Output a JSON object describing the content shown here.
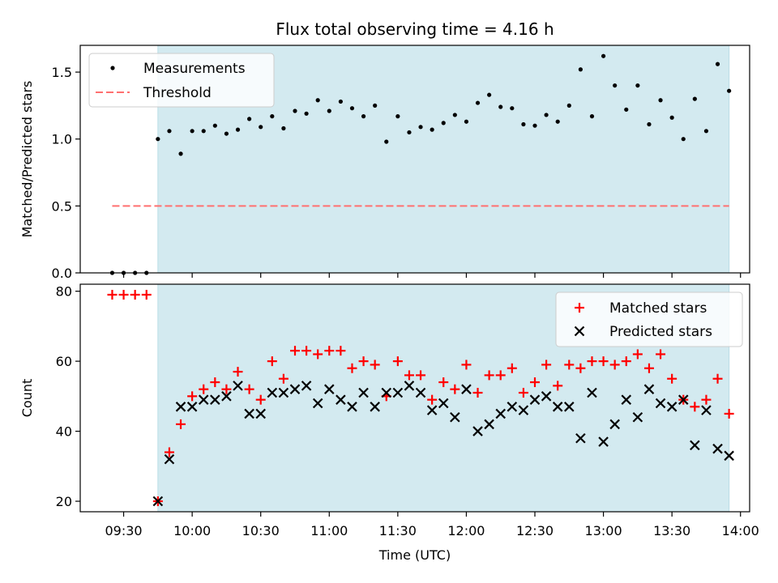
{
  "chart_data": [
    {
      "type": "scatter",
      "title": "Flux total observing time = 4.16 h",
      "ylabel": "Matched/Predicted stars",
      "xlabel": "",
      "ylim": [
        0,
        1.7
      ],
      "yticks": [
        0.0,
        0.5,
        1.0,
        1.5
      ],
      "ytick_labels": [
        "0.0",
        "0.5",
        "1.0",
        "1.5"
      ],
      "shaded_interval": [
        "09:45",
        "13:55"
      ],
      "legend": {
        "placement": "top-left",
        "entries": [
          "Measurements",
          "Threshold"
        ]
      },
      "threshold": {
        "name": "Threshold",
        "value": 0.5,
        "x_start": "09:25",
        "x_end": "13:55",
        "color": "#ff7070"
      },
      "series": [
        {
          "name": "Measurements",
          "color": "#000000",
          "x": [
            "09:25",
            "09:30",
            "09:35",
            "09:40",
            "09:45",
            "09:50",
            "09:55",
            "10:00",
            "10:05",
            "10:10",
            "10:15",
            "10:20",
            "10:25",
            "10:30",
            "10:35",
            "10:40",
            "10:45",
            "10:50",
            "10:55",
            "11:00",
            "11:05",
            "11:10",
            "11:15",
            "11:20",
            "11:25",
            "11:30",
            "11:35",
            "11:40",
            "11:45",
            "11:50",
            "11:55",
            "12:00",
            "12:05",
            "12:10",
            "12:15",
            "12:20",
            "12:25",
            "12:30",
            "12:35",
            "12:40",
            "12:45",
            "12:50",
            "12:55",
            "13:00",
            "13:05",
            "13:10",
            "13:15",
            "13:20",
            "13:25",
            "13:30",
            "13:35",
            "13:40",
            "13:45",
            "13:50",
            "13:55"
          ],
          "y": [
            0.0,
            0.0,
            0.0,
            0.0,
            1.0,
            1.06,
            0.89,
            1.06,
            1.06,
            1.1,
            1.04,
            1.07,
            1.15,
            1.09,
            1.17,
            1.08,
            1.21,
            1.19,
            1.29,
            1.21,
            1.28,
            1.23,
            1.17,
            1.25,
            0.98,
            1.17,
            1.05,
            1.09,
            1.07,
            1.12,
            1.18,
            1.13,
            1.27,
            1.33,
            1.24,
            1.23,
            1.11,
            1.1,
            1.18,
            1.13,
            1.25,
            1.52,
            1.17,
            1.62,
            1.4,
            1.22,
            1.4,
            1.11,
            1.29,
            1.16,
            1.0,
            1.3,
            1.06,
            1.56,
            1.36
          ]
        }
      ]
    },
    {
      "type": "scatter",
      "title": "",
      "ylabel": "Count",
      "xlabel": "Time (UTC)",
      "ylim": [
        17,
        82
      ],
      "yticks": [
        20,
        40,
        60,
        80
      ],
      "ytick_labels": [
        "20",
        "40",
        "60",
        "80"
      ],
      "xticks": [
        "09:30",
        "10:00",
        "10:30",
        "11:00",
        "11:30",
        "12:00",
        "12:30",
        "13:00",
        "13:30",
        "14:00"
      ],
      "xtick_labels": [
        "09:30",
        "10:00",
        "10:30",
        "11:00",
        "11:30",
        "12:00",
        "12:30",
        "13:00",
        "13:30",
        "14:00"
      ],
      "xlim": [
        "09:11",
        "14:04"
      ],
      "shaded_interval": [
        "09:45",
        "13:55"
      ],
      "legend": {
        "placement": "top-right",
        "entries": [
          "Matched stars",
          "Predicted stars"
        ]
      },
      "series": [
        {
          "name": "Matched stars",
          "marker": "plus",
          "color": "#ff0000",
          "x": [
            "09:25",
            "09:30",
            "09:35",
            "09:40",
            "09:45",
            "09:50",
            "09:55",
            "10:00",
            "10:05",
            "10:10",
            "10:15",
            "10:20",
            "10:25",
            "10:30",
            "10:35",
            "10:40",
            "10:45",
            "10:50",
            "10:55",
            "11:00",
            "11:05",
            "11:10",
            "11:15",
            "11:20",
            "11:25",
            "11:30",
            "11:35",
            "11:40",
            "11:45",
            "11:50",
            "11:55",
            "12:00",
            "12:05",
            "12:10",
            "12:15",
            "12:20",
            "12:25",
            "12:30",
            "12:35",
            "12:40",
            "12:45",
            "12:50",
            "12:55",
            "13:00",
            "13:05",
            "13:10",
            "13:15",
            "13:20",
            "13:25",
            "13:30",
            "13:35",
            "13:40",
            "13:45",
            "13:50",
            "13:55"
          ],
          "y": [
            79,
            79,
            79,
            79,
            20,
            34,
            42,
            50,
            52,
            54,
            52,
            57,
            52,
            49,
            60,
            55,
            63,
            63,
            62,
            63,
            63,
            58,
            60,
            59,
            50,
            60,
            56,
            56,
            49,
            54,
            52,
            59,
            51,
            56,
            56,
            58,
            51,
            54,
            59,
            53,
            59,
            58,
            60,
            60,
            59,
            60,
            62,
            58,
            62,
            55,
            49,
            47,
            49,
            55,
            45
          ]
        },
        {
          "name": "Predicted stars",
          "marker": "x",
          "color": "#000000",
          "x": [
            "09:45",
            "09:50",
            "09:55",
            "10:00",
            "10:05",
            "10:10",
            "10:15",
            "10:20",
            "10:25",
            "10:30",
            "10:35",
            "10:40",
            "10:45",
            "10:50",
            "10:55",
            "11:00",
            "11:05",
            "11:10",
            "11:15",
            "11:20",
            "11:25",
            "11:30",
            "11:35",
            "11:40",
            "11:45",
            "11:50",
            "11:55",
            "12:00",
            "12:05",
            "12:10",
            "12:15",
            "12:20",
            "12:25",
            "12:30",
            "12:35",
            "12:40",
            "12:45",
            "12:50",
            "12:55",
            "13:00",
            "13:05",
            "13:10",
            "13:15",
            "13:20",
            "13:25",
            "13:30",
            "13:35",
            "13:40",
            "13:45",
            "13:50",
            "13:55"
          ],
          "y": [
            20,
            32,
            47,
            47,
            49,
            49,
            50,
            53,
            45,
            45,
            51,
            51,
            52,
            53,
            48,
            52,
            49,
            47,
            51,
            47,
            51,
            51,
            53,
            51,
            46,
            48,
            44,
            52,
            40,
            42,
            45,
            47,
            46,
            49,
            50,
            47,
            47,
            38,
            51,
            37,
            42,
            49,
            44,
            52,
            48,
            47,
            49,
            36,
            46,
            35,
            33
          ]
        }
      ]
    }
  ]
}
